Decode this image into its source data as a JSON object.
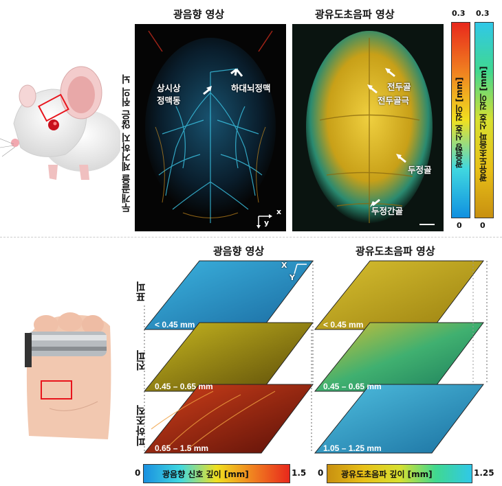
{
  "top": {
    "left_title": "광음향 영상",
    "right_title": "광유도초음파 영상",
    "side_label": "두개골을 제거하지 않은 쥐의 뇌",
    "annotations": {
      "sss_1": "상시상",
      "sss_2": "정맥동",
      "ica": "하대뇌정맥",
      "frontal": "전두골",
      "frontal_suture": "전두골극",
      "parietal": "두정골",
      "interparietal": "두정간골"
    },
    "axis": {
      "x": "x",
      "y": "y"
    },
    "colorbar_red": {
      "max": "0.3",
      "min": "0",
      "label": "광음향 신호 깊이 [mm]"
    },
    "colorbar_yellow": {
      "max": "0.3",
      "min": "0",
      "label": "광유도초음파 신호 깊이 [mm]"
    }
  },
  "bottom": {
    "left_title": "광음향 영상",
    "right_title": "광유도초음파 영상",
    "layers": {
      "epidermis": "표피",
      "dermis": "진피",
      "subcutis": "피하조직"
    },
    "pa_depths": [
      "< 0.45 mm",
      "0.45 – 0.65 mm",
      "0.65 – 1.5 mm"
    ],
    "us_depths": [
      "< 0.45 mm",
      "0.45 – 0.65 mm",
      "1.05 – 1.25 mm"
    ],
    "axis": {
      "x": "X",
      "y": "Y"
    },
    "bar_pa": {
      "min": "0",
      "label": "광음향 신호 깊이 [mm]",
      "max": "1.5"
    },
    "bar_us": {
      "min": "0",
      "label": "광유도초음파 깊이 [mm]",
      "max": "1.25"
    }
  },
  "colors": {
    "pa_cyan": "#2fc6e8",
    "pa_red": "#e0321c",
    "us_yellow": "#e6c21a",
    "us_green": "#1aa38f",
    "marker": "#e8141c"
  }
}
